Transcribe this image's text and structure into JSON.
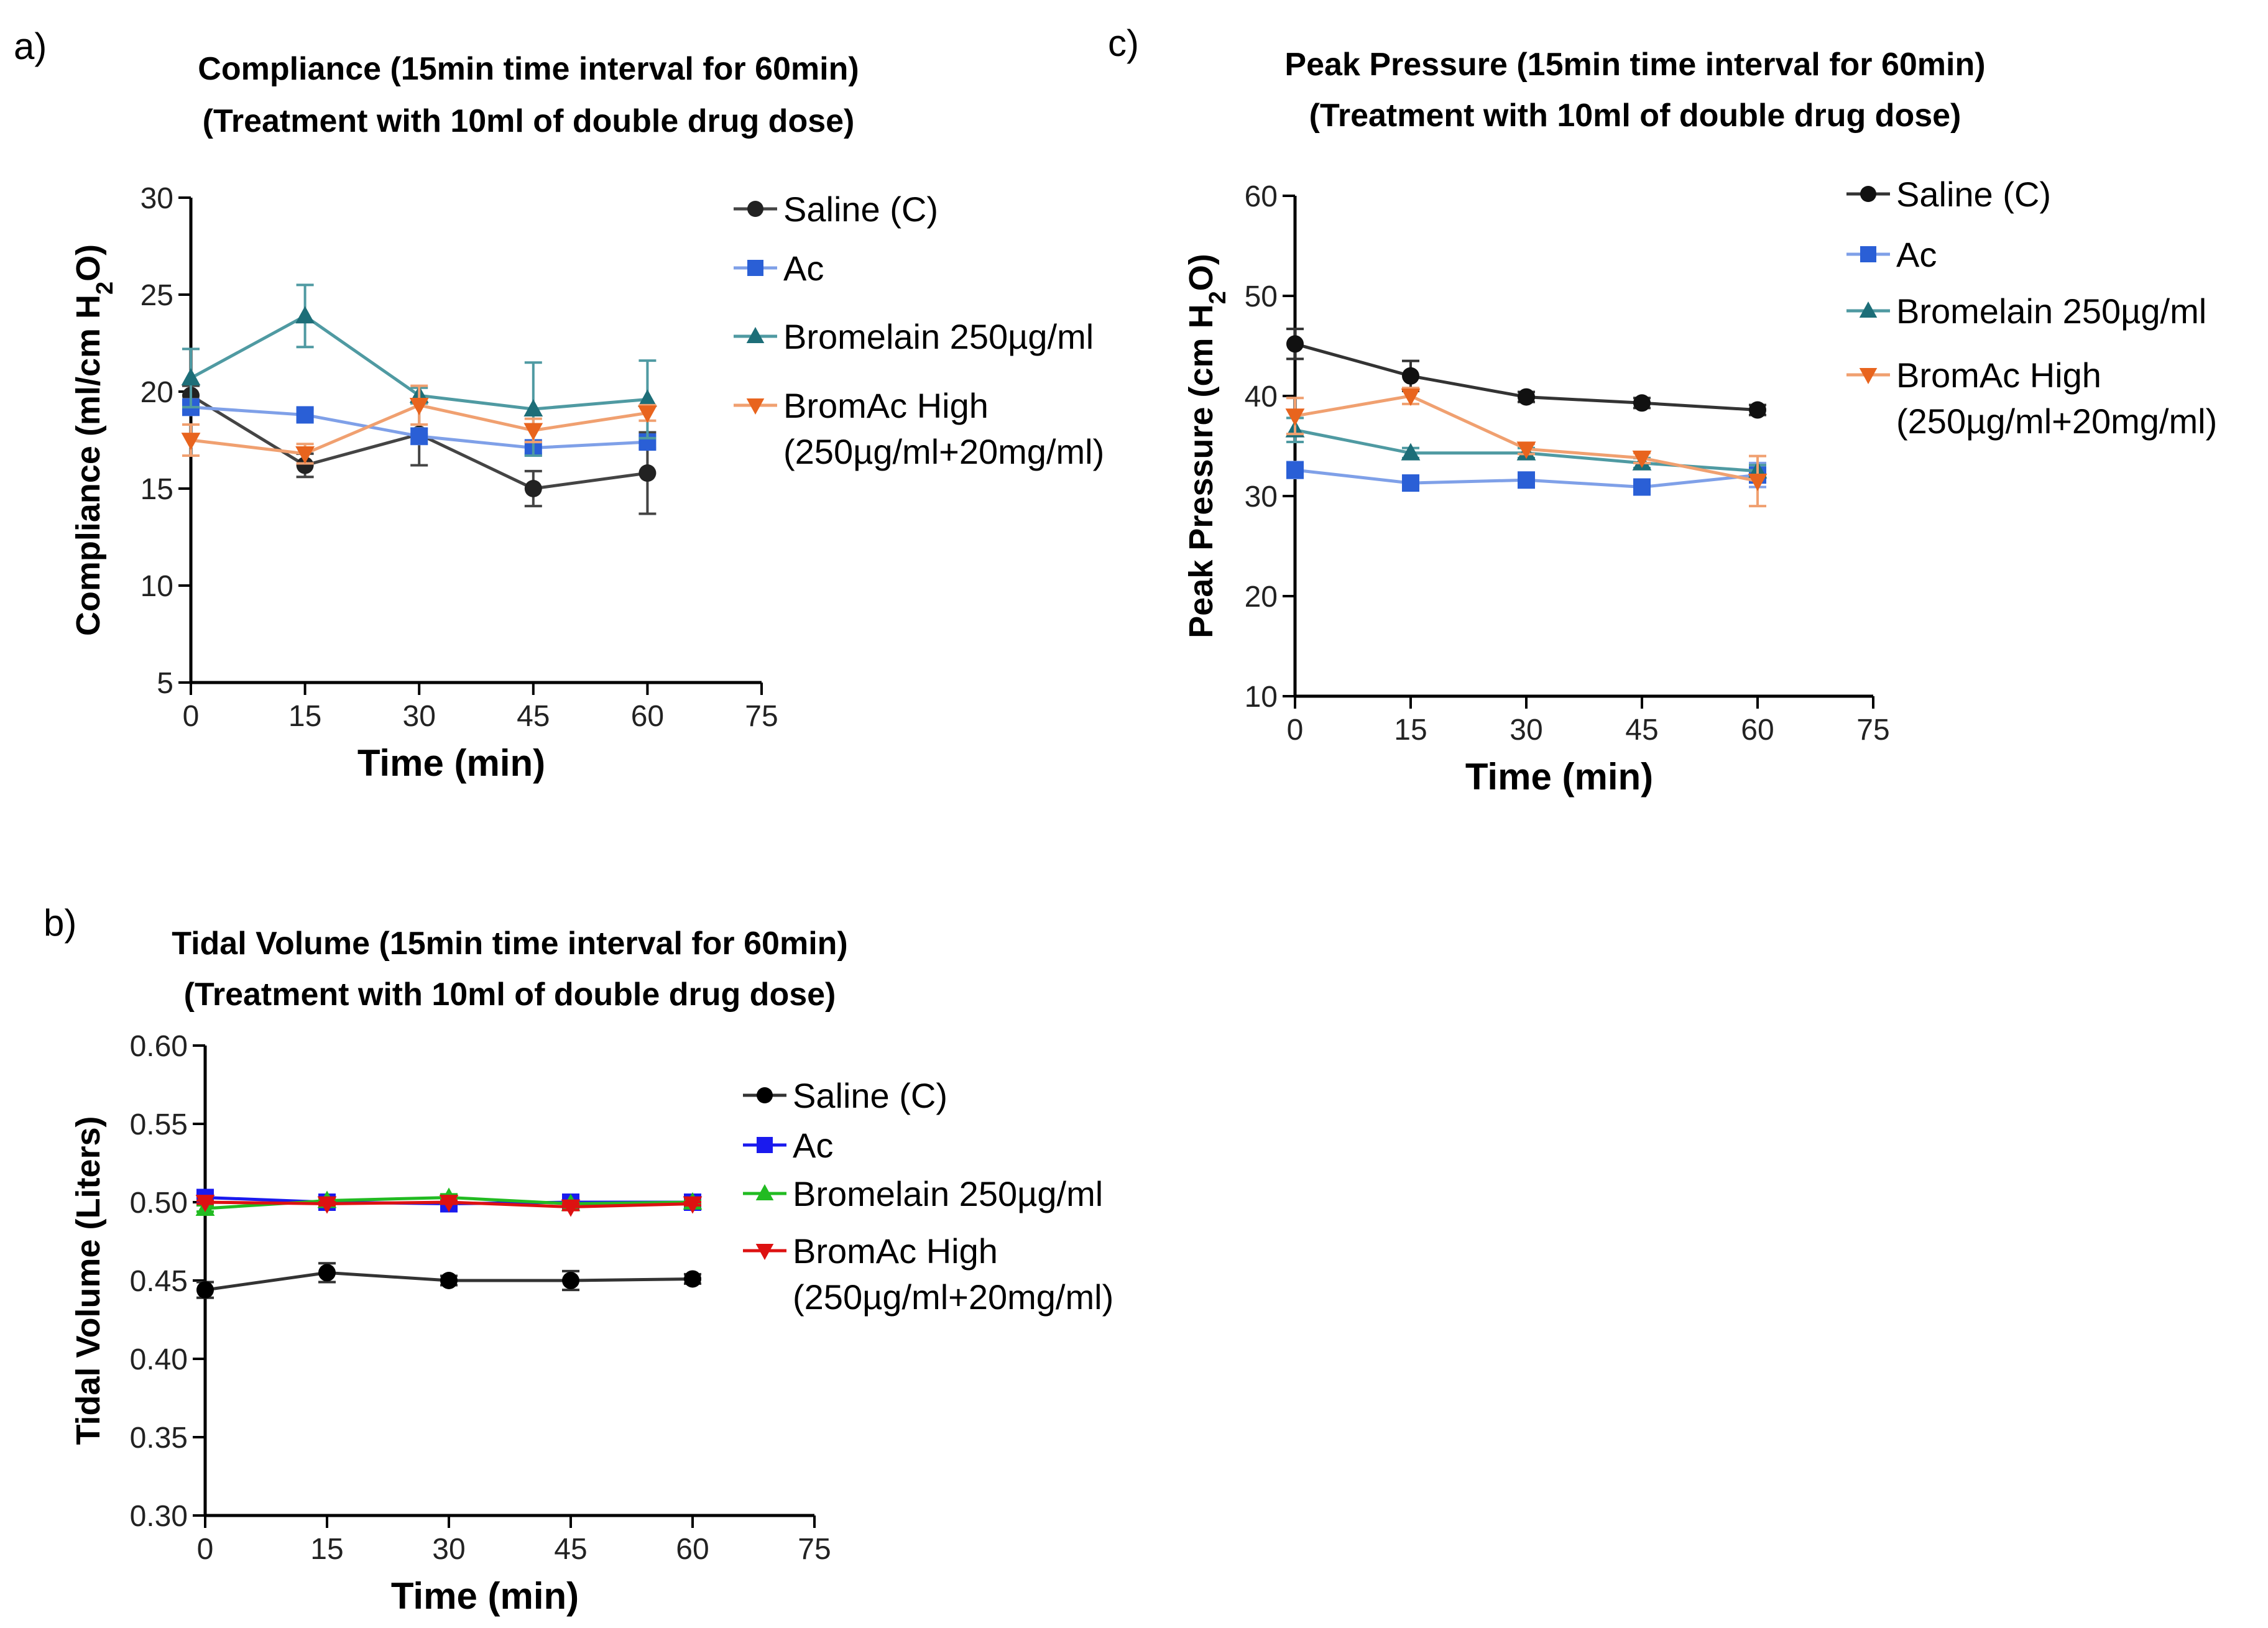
{
  "chart_data": [
    {
      "panel": "a)",
      "type": "line",
      "title": [
        "Compliance (15min time interval for 60min)",
        "(Treatment with 10ml of double drug dose)"
      ],
      "xlabel": "Time (min)",
      "ylabel_parts": [
        "Compliance (ml/cm H",
        "2",
        "O)"
      ],
      "xlim": [
        0,
        75
      ],
      "ylim": [
        5,
        30
      ],
      "xticks": [
        "0",
        "15",
        "30",
        "45",
        "60",
        "75"
      ],
      "yticks": [
        "5",
        "10",
        "15",
        "20",
        "25",
        "30"
      ],
      "legend_position": "right",
      "series": [
        {
          "name": "Saline (C)",
          "legend_lines": [
            "Saline (C)"
          ],
          "color": "#222222",
          "line_color": "#444444",
          "marker": "circle",
          "x": [
            0,
            15,
            30,
            45,
            60
          ],
          "y": [
            19.8,
            16.2,
            17.8,
            15.0,
            15.8
          ],
          "err": [
            0.5,
            0.6,
            1.6,
            0.9,
            2.1
          ]
        },
        {
          "name": "Ac",
          "legend_lines": [
            "Ac"
          ],
          "color": "#2a5fd6",
          "line_color": "#7fa0e8",
          "marker": "square",
          "x": [
            0,
            15,
            30,
            45,
            60
          ],
          "y": [
            19.2,
            18.8,
            17.7,
            17.1,
            17.4
          ],
          "err": [
            0.4,
            0.3,
            0.4,
            0.3,
            0.3
          ]
        },
        {
          "name": "Bromelain 250µg/ml",
          "legend_lines": [
            "Bromelain 250µg/ml"
          ],
          "color": "#1d6e78",
          "line_color": "#4f9aa2",
          "marker": "triangle",
          "x": [
            0,
            15,
            30,
            45,
            60
          ],
          "y": [
            20.7,
            23.9,
            19.8,
            19.1,
            19.6
          ],
          "err": [
            1.5,
            1.6,
            0.4,
            2.4,
            2.0
          ]
        },
        {
          "name": "BromAc High (250µg/ml+20mg/ml)",
          "legend_lines": [
            "BromAc High",
            "(250µg/ml+20mg/ml)"
          ],
          "color": "#e8641e",
          "line_color": "#f0a070",
          "marker": "triangle-down",
          "x": [
            0,
            15,
            30,
            45,
            60
          ],
          "y": [
            17.5,
            16.8,
            19.3,
            18.0,
            18.9
          ],
          "err": [
            0.8,
            0.5,
            1.0,
            0.6,
            0.4
          ]
        }
      ]
    },
    {
      "panel": "b)",
      "type": "line",
      "title": [
        "Tidal Volume (15min time interval for 60min)",
        "(Treatment with 10ml of double drug dose)"
      ],
      "xlabel": "Time (min)",
      "ylabel_parts": [
        "Tidal Volume (Liters)"
      ],
      "xlim": [
        0,
        75
      ],
      "ylim": [
        0.3,
        0.6
      ],
      "xticks": [
        "0",
        "15",
        "30",
        "45",
        "60",
        "75"
      ],
      "yticks": [
        "0.30",
        "0.35",
        "0.40",
        "0.45",
        "0.50",
        "0.55",
        "0.60"
      ],
      "legend_position": "right",
      "series": [
        {
          "name": "Saline (C)",
          "legend_lines": [
            "Saline (C)"
          ],
          "color": "#000000",
          "line_color": "#333333",
          "marker": "circle",
          "x": [
            0,
            15,
            30,
            45,
            60
          ],
          "y": [
            0.444,
            0.455,
            0.45,
            0.45,
            0.451
          ],
          "err": [
            0.005,
            0.006,
            0.003,
            0.006,
            0.003
          ]
        },
        {
          "name": "Ac",
          "legend_lines": [
            "Ac"
          ],
          "color": "#1a1aee",
          "line_color": "#1a1aee",
          "marker": "square",
          "x": [
            0,
            15,
            30,
            45,
            60
          ],
          "y": [
            0.503,
            0.5,
            0.499,
            0.5,
            0.5
          ],
          "err": [
            0.002,
            0.001,
            0.002,
            0.001,
            0.001
          ]
        },
        {
          "name": "Bromelain 250µg/ml",
          "legend_lines": [
            "Bromelain 250µg/ml"
          ],
          "color": "#22bb22",
          "line_color": "#22bb22",
          "marker": "triangle",
          "x": [
            0,
            15,
            30,
            45,
            60
          ],
          "y": [
            0.496,
            0.501,
            0.503,
            0.499,
            0.5
          ],
          "err": [
            0.002,
            0.001,
            0.002,
            0.001,
            0.001
          ]
        },
        {
          "name": "BromAc High (250µg/ml+20mg/ml)",
          "legend_lines": [
            "BromAc High",
            "(250µg/ml+20mg/ml)"
          ],
          "color": "#dd1111",
          "line_color": "#dd1111",
          "marker": "triangle-down",
          "x": [
            0,
            15,
            30,
            45,
            60
          ],
          "y": [
            0.5,
            0.499,
            0.5,
            0.497,
            0.499
          ],
          "err": [
            0.001,
            0.001,
            0.001,
            0.002,
            0.001
          ]
        }
      ]
    },
    {
      "panel": "c)",
      "type": "line",
      "title": [
        "Peak Pressure (15min time interval for 60min)",
        "(Treatment with 10ml of double drug dose)"
      ],
      "xlabel": "Time (min)",
      "ylabel_parts": [
        "Peak Pressure (cm H",
        "2",
        "O)"
      ],
      "xlim": [
        0,
        75
      ],
      "ylim": [
        10,
        60
      ],
      "xticks": [
        "0",
        "15",
        "30",
        "45",
        "60",
        "75"
      ],
      "yticks": [
        "10",
        "20",
        "30",
        "40",
        "50",
        "60"
      ],
      "legend_position": "right",
      "series": [
        {
          "name": "Saline (C)",
          "legend_lines": [
            "Saline (C)"
          ],
          "color": "#111111",
          "line_color": "#333333",
          "marker": "circle",
          "x": [
            0,
            15,
            30,
            45,
            60
          ],
          "y": [
            45.2,
            42.0,
            39.9,
            39.3,
            38.6
          ],
          "err": [
            1.5,
            1.5,
            0.5,
            0.5,
            0.5
          ]
        },
        {
          "name": "Ac",
          "legend_lines": [
            "Ac"
          ],
          "color": "#2a5fd6",
          "line_color": "#7fa0e8",
          "marker": "square",
          "x": [
            0,
            15,
            30,
            45,
            60
          ],
          "y": [
            32.6,
            31.3,
            31.6,
            30.9,
            32.1
          ],
          "err": [
            0.8,
            0.6,
            0.6,
            0.6,
            1.2
          ]
        },
        {
          "name": "Bromelain 250µg/ml",
          "legend_lines": [
            "Bromelain 250µg/ml"
          ],
          "color": "#1d6e78",
          "line_color": "#4f9aa2",
          "marker": "triangle",
          "x": [
            0,
            15,
            30,
            45,
            60
          ],
          "y": [
            36.6,
            34.3,
            34.3,
            33.3,
            32.5
          ],
          "err": [
            1.2,
            0.5,
            0.5,
            0.5,
            0.6
          ]
        },
        {
          "name": "BromAc High (250µg/ml+20mg/ml)",
          "legend_lines": [
            "BromAc High",
            "(250µg/ml+20mg/ml)"
          ],
          "color": "#e8641e",
          "line_color": "#f0a070",
          "marker": "triangle-down",
          "x": [
            0,
            15,
            30,
            45,
            60
          ],
          "y": [
            38.0,
            40.0,
            34.7,
            33.8,
            31.5
          ],
          "err": [
            1.8,
            0.8,
            0.5,
            0.5,
            2.5
          ]
        }
      ]
    }
  ]
}
